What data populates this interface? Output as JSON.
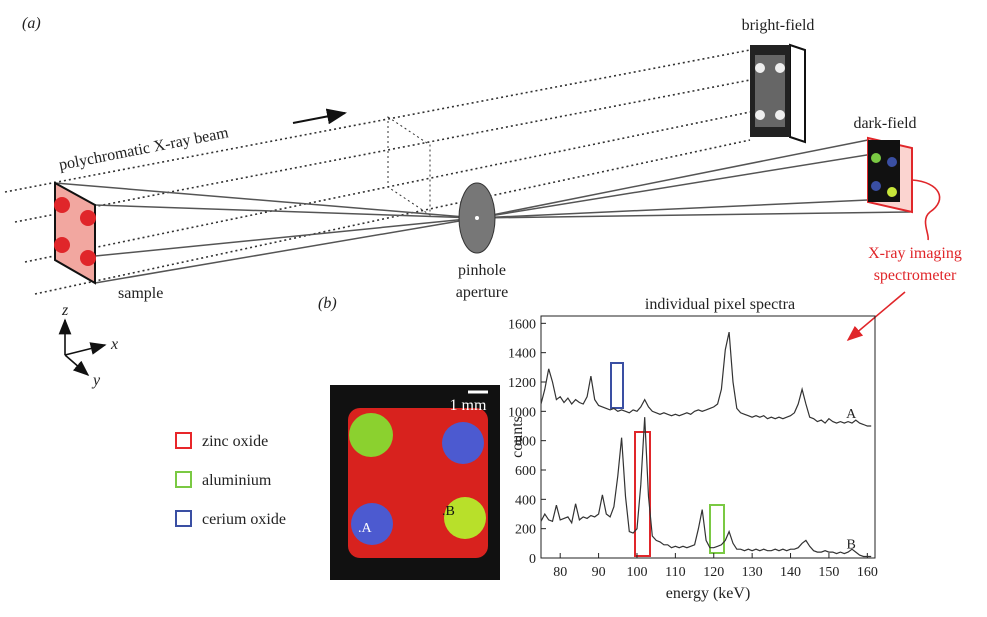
{
  "panel_a": {
    "label": "(a)",
    "beam_label": "polychromatic X-ray beam",
    "bright_field": "bright-field",
    "dark_field": "dark-field",
    "sample": "sample",
    "pinhole": [
      "pinhole",
      "aperture"
    ],
    "spectrometer": [
      "X-ray imaging",
      "spectrometer"
    ],
    "axes": {
      "z": "z",
      "x": "x",
      "y": "y"
    }
  },
  "panel_b": {
    "label": "(b)",
    "scale_bar": "1 mm",
    "points": [
      ".A",
      ".B"
    ],
    "legend": [
      {
        "name": "zinc oxide",
        "color": "#e8262a"
      },
      {
        "name": "aluminium",
        "color": "#7ac943"
      },
      {
        "name": "cerium oxide",
        "color": "#3a4fa3"
      }
    ]
  },
  "chart": {
    "type": "line",
    "title": "individual pixel spectra",
    "x_label": "energy (keV)",
    "y_label": "counts",
    "xlim": [
      75,
      162
    ],
    "ylim": [
      0,
      1650
    ],
    "xticks": [
      80,
      90,
      100,
      110,
      120,
      130,
      140,
      150,
      160
    ],
    "yticks": [
      0,
      200,
      400,
      600,
      800,
      1000,
      1200,
      1400,
      1600
    ],
    "x": [
      75,
      76,
      77,
      78,
      79,
      80,
      81,
      82,
      83,
      84,
      85,
      86,
      87,
      88,
      89,
      90,
      91,
      92,
      93,
      94,
      95,
      96,
      97,
      98,
      99,
      100,
      101,
      102,
      103,
      104,
      105,
      106,
      107,
      108,
      109,
      110,
      111,
      112,
      113,
      114,
      115,
      116,
      117,
      118,
      119,
      120,
      121,
      122,
      123,
      124,
      125,
      126,
      127,
      128,
      129,
      130,
      131,
      132,
      133,
      134,
      135,
      136,
      137,
      138,
      139,
      140,
      141,
      142,
      143,
      144,
      145,
      146,
      147,
      148,
      149,
      150,
      151,
      152,
      153,
      154,
      155,
      156,
      157,
      158,
      159,
      160,
      161
    ],
    "series": [
      {
        "name": "A",
        "color": "#333333",
        "values": [
          1050,
          1150,
          1290,
          1200,
          1080,
          1100,
          1060,
          1090,
          1050,
          1080,
          1060,
          1050,
          1100,
          1240,
          1080,
          1040,
          1030,
          1020,
          1010,
          1020,
          1000,
          1010,
          1000,
          990,
          1010,
          1000,
          1030,
          1080,
          1030,
          1000,
          990,
          980,
          990,
          980,
          970,
          980,
          970,
          980,
          990,
          980,
          1000,
          1010,
          1000,
          1010,
          1020,
          1030,
          1050,
          1150,
          1420,
          1540,
          1200,
          1020,
          990,
          980,
          970,
          960,
          970,
          960,
          970,
          950,
          960,
          950,
          960,
          950,
          960,
          970,
          990,
          1050,
          1150,
          1050,
          960,
          950,
          930,
          940,
          920,
          950,
          930,
          920,
          930,
          920,
          930,
          920,
          940,
          920,
          910,
          900,
          900
        ]
      },
      {
        "name": "B",
        "color": "#333333",
        "values": [
          250,
          300,
          260,
          250,
          360,
          260,
          270,
          280,
          240,
          370,
          260,
          280,
          270,
          290,
          280,
          300,
          430,
          300,
          280,
          350,
          560,
          820,
          420,
          180,
          170,
          200,
          500,
          960,
          420,
          150,
          120,
          110,
          90,
          90,
          70,
          80,
          70,
          80,
          70,
          80,
          90,
          200,
          330,
          120,
          70,
          70,
          80,
          90,
          120,
          180,
          100,
          60,
          60,
          50,
          60,
          50,
          60,
          50,
          60,
          50,
          50,
          60,
          50,
          60,
          50,
          60,
          60,
          70,
          100,
          120,
          80,
          50,
          40,
          40,
          50,
          40,
          40,
          30,
          40,
          30,
          40,
          60,
          40,
          20,
          10,
          10,
          10
        ]
      }
    ]
  }
}
